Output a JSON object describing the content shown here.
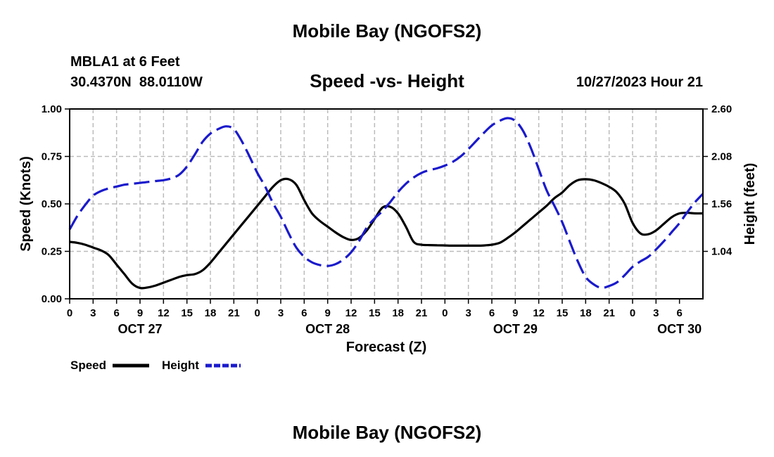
{
  "header": {
    "title": "Mobile Bay (NGOFS2)",
    "station": "MBLA1 at 6 Feet",
    "coords": "30.4370N  88.0110W",
    "subtitle": "Speed -vs- Height",
    "datetime": "10/27/2023 Hour 21"
  },
  "footer": {
    "title": "Mobile Bay (NGOFS2)"
  },
  "legend": {
    "speed_label": "Speed",
    "height_label": "Height"
  },
  "colors": {
    "speed": "#000000",
    "height": "#1a1acc",
    "grid": "#bbbbbb"
  },
  "chart_data": {
    "type": "line",
    "title": "Speed -vs- Height",
    "xlabel": "Forecast (Z)",
    "ylabel": "Speed (Knots)",
    "y2label": "Height (feet)",
    "x_range_hours": [
      0,
      81
    ],
    "ylim": [
      0,
      1.0
    ],
    "y2lim": [
      0.52,
      2.6
    ],
    "y_ticks": [
      "0.00",
      "0.25",
      "0.50",
      "0.75",
      "1.00"
    ],
    "y2_ticks": [
      "1.04",
      "1.56",
      "2.08",
      "2.60"
    ],
    "x_ticks": [
      "0",
      "3",
      "6",
      "9",
      "12",
      "15",
      "18",
      "21",
      "0",
      "3",
      "6",
      "9",
      "12",
      "15",
      "18",
      "21",
      "0",
      "3",
      "6",
      "9",
      "12",
      "15",
      "18",
      "21",
      "0",
      "3",
      "6"
    ],
    "date_labels": [
      {
        "label": "OCT 27",
        "hour": 9
      },
      {
        "label": "OCT 28",
        "hour": 33
      },
      {
        "label": "OCT 29",
        "hour": 57
      },
      {
        "label": "OCT 30",
        "hour": 78
      }
    ],
    "grid": true,
    "series": [
      {
        "name": "Speed",
        "axis": "left",
        "style": "solid",
        "x": [
          0,
          1,
          2,
          3,
          4,
          5,
          6,
          7,
          8,
          9,
          10,
          11,
          12,
          13,
          14,
          15,
          16,
          17,
          18,
          19,
          20,
          21,
          22,
          23,
          24,
          25,
          26,
          27,
          28,
          29,
          30,
          31,
          32,
          33,
          34,
          35,
          36,
          37,
          38,
          39,
          40,
          41,
          42,
          43,
          44,
          45,
          46,
          47,
          48,
          49,
          50,
          51,
          52,
          53,
          54,
          55,
          56,
          57,
          58,
          59,
          60,
          61,
          62,
          63,
          64,
          65,
          66,
          67,
          68,
          69,
          70,
          71,
          72,
          73,
          74,
          75,
          76,
          77,
          78,
          79,
          80,
          81
        ],
        "values": [
          0.3,
          0.295,
          0.285,
          0.27,
          0.255,
          0.23,
          0.18,
          0.13,
          0.08,
          0.057,
          0.06,
          0.07,
          0.085,
          0.1,
          0.115,
          0.125,
          0.13,
          0.15,
          0.19,
          0.24,
          0.29,
          0.34,
          0.39,
          0.44,
          0.49,
          0.54,
          0.59,
          0.625,
          0.63,
          0.6,
          0.52,
          0.45,
          0.41,
          0.38,
          0.35,
          0.325,
          0.31,
          0.32,
          0.36,
          0.42,
          0.48,
          0.485,
          0.45,
          0.38,
          0.3,
          0.285,
          0.283,
          0.282,
          0.281,
          0.28,
          0.28,
          0.28,
          0.28,
          0.281,
          0.285,
          0.295,
          0.32,
          0.35,
          0.385,
          0.42,
          0.455,
          0.49,
          0.53,
          0.56,
          0.6,
          0.625,
          0.63,
          0.625,
          0.61,
          0.59,
          0.56,
          0.5,
          0.4,
          0.345,
          0.34,
          0.36,
          0.395,
          0.43,
          0.45,
          0.453,
          0.45,
          0.45
        ]
      },
      {
        "name": "Height",
        "axis": "right",
        "style": "dashed",
        "x": [
          0,
          1,
          2,
          3,
          4,
          5,
          6,
          7,
          8,
          9,
          10,
          11,
          12,
          13,
          14,
          15,
          16,
          17,
          18,
          19,
          20,
          21,
          22,
          23,
          24,
          25,
          26,
          27,
          28,
          29,
          30,
          31,
          32,
          33,
          34,
          35,
          36,
          37,
          38,
          39,
          40,
          41,
          42,
          43,
          44,
          45,
          46,
          47,
          48,
          49,
          50,
          51,
          52,
          53,
          54,
          55,
          56,
          57,
          58,
          59,
          60,
          61,
          62,
          63,
          64,
          65,
          66,
          67,
          68,
          69,
          70,
          71,
          72,
          73,
          74,
          75,
          76,
          77,
          78,
          79,
          80,
          81
        ],
        "values": [
          1.28,
          1.43,
          1.55,
          1.65,
          1.7,
          1.73,
          1.75,
          1.77,
          1.78,
          1.79,
          1.8,
          1.81,
          1.82,
          1.84,
          1.88,
          1.97,
          2.1,
          2.24,
          2.33,
          2.38,
          2.41,
          2.38,
          2.25,
          2.08,
          1.9,
          1.75,
          1.57,
          1.42,
          1.24,
          1.08,
          0.98,
          0.92,
          0.89,
          0.88,
          0.9,
          0.95,
          1.03,
          1.15,
          1.3,
          1.4,
          1.48,
          1.58,
          1.69,
          1.78,
          1.85,
          1.9,
          1.93,
          1.95,
          1.98,
          2.02,
          2.08,
          2.16,
          2.25,
          2.34,
          2.42,
          2.47,
          2.5,
          2.47,
          2.36,
          2.17,
          1.94,
          1.71,
          1.54,
          1.36,
          1.14,
          0.93,
          0.76,
          0.68,
          0.64,
          0.66,
          0.7,
          0.78,
          0.87,
          0.93,
          0.98,
          1.06,
          1.15,
          1.25,
          1.35,
          1.47,
          1.58,
          1.67
        ]
      }
    ]
  }
}
